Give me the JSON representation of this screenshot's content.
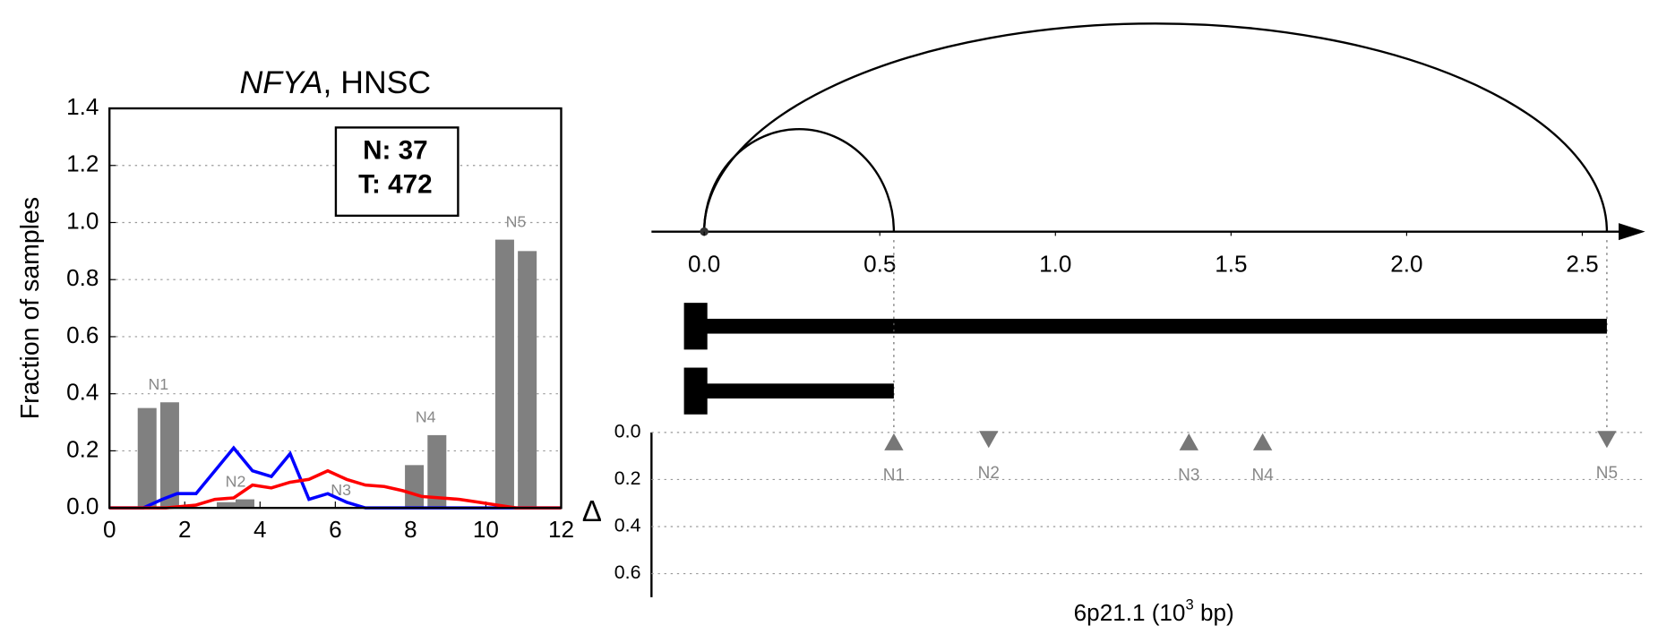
{
  "chart_data": [
    {
      "type": "line",
      "title": [
        "NFYA",
        ", HNSC"
      ],
      "ylabel": "Fraction of samples",
      "xlim": [
        0,
        12
      ],
      "xticks": [
        0,
        2,
        4,
        6,
        8,
        10,
        12
      ],
      "ylim": [
        0,
        1.4
      ],
      "yticks": [
        {
          "value": 0,
          "label": "0.0"
        },
        0.2,
        0.4,
        0.6,
        0.8,
        {
          "value": 1,
          "label": "1.0"
        },
        1.2,
        1.4
      ],
      "grid": true,
      "annotations": [
        "N: 37",
        "T: 472"
      ],
      "bar_color": "#808080",
      "bar_groups": [
        {
          "name": "N1",
          "x": [
            1.0,
            1.6
          ],
          "values": [
            0.35,
            0.37
          ]
        },
        {
          "name": "N2",
          "x": [
            3.1,
            3.6
          ],
          "values": [
            0.02,
            0.03
          ]
        },
        {
          "name": "N3",
          "x": [
            5.9,
            6.4
          ],
          "values": [
            0,
            0
          ]
        },
        {
          "name": "N4",
          "x": [
            8.1,
            8.7
          ],
          "values": [
            0.15,
            0.255
          ]
        },
        {
          "name": "N5",
          "x": [
            10.5,
            11.1
          ],
          "values": [
            0.94,
            0.9
          ]
        }
      ],
      "series": [
        {
          "color": "#0000ff",
          "x": [
            0,
            0.9,
            1.4,
            1.8,
            2.3,
            2.8,
            3.3,
            3.8,
            4.3,
            4.8,
            5.3,
            5.8,
            6.3,
            6.8,
            12
          ],
          "values": [
            0,
            0,
            0.03,
            0.05,
            0.05,
            0.13,
            0.21,
            0.13,
            0.11,
            0.19,
            0.03,
            0.05,
            0.02,
            0,
            0
          ]
        },
        {
          "color": "#ff0000",
          "x": [
            0,
            1.5,
            2.3,
            2.8,
            3.3,
            3.8,
            4.3,
            4.8,
            5.3,
            5.8,
            6.3,
            6.8,
            7.3,
            7.8,
            8.3,
            8.8,
            9.3,
            9.8,
            10.3,
            10.8,
            12
          ],
          "values": [
            0,
            0,
            0.01,
            0.03,
            0.035,
            0.08,
            0.07,
            0.09,
            0.1,
            0.13,
            0.1,
            0.08,
            0.075,
            0.06,
            0.04,
            0.035,
            0.03,
            0.02,
            0.01,
            0,
            0
          ]
        }
      ]
    },
    {
      "type": "gene-structure",
      "xlabel": [
        "6p21.1 (10",
        "3",
        " bp)"
      ],
      "xlim": [
        -0.15,
        2.67
      ],
      "xticks": [
        {
          "value": 0,
          "label": "0.0"
        },
        0.5,
        {
          "value": 1,
          "label": "1.0"
        },
        1.5,
        {
          "value": 2,
          "label": "2.0"
        },
        2.5
      ],
      "arcs": [
        {
          "start": 0,
          "end": 0.54
        },
        {
          "start": 0,
          "end": 2.57
        }
      ],
      "transcripts": [
        {
          "start": 0,
          "end": 2.57
        },
        {
          "start": 0,
          "end": 0.54
        }
      ],
      "ylabel": "Δ",
      "ylim": [
        0,
        0.7
      ],
      "y_inverted": true,
      "grid": true,
      "yticks": [
        {
          "value": 0,
          "label": "0.0"
        },
        0.2,
        0.4,
        0.6
      ],
      "marker_color": "#777777",
      "sites": [
        {
          "name": "N1",
          "x": 0.54,
          "delta": 0.04,
          "direction": "up"
        },
        {
          "name": "N2",
          "x": 0.81,
          "delta": 0.03,
          "direction": "down"
        },
        {
          "name": "N3",
          "x": 1.38,
          "delta": 0.04,
          "direction": "up"
        },
        {
          "name": "N4",
          "x": 1.59,
          "delta": 0.04,
          "direction": "up"
        },
        {
          "name": "N5",
          "x": 2.57,
          "delta": 0.03,
          "direction": "down"
        }
      ]
    }
  ]
}
